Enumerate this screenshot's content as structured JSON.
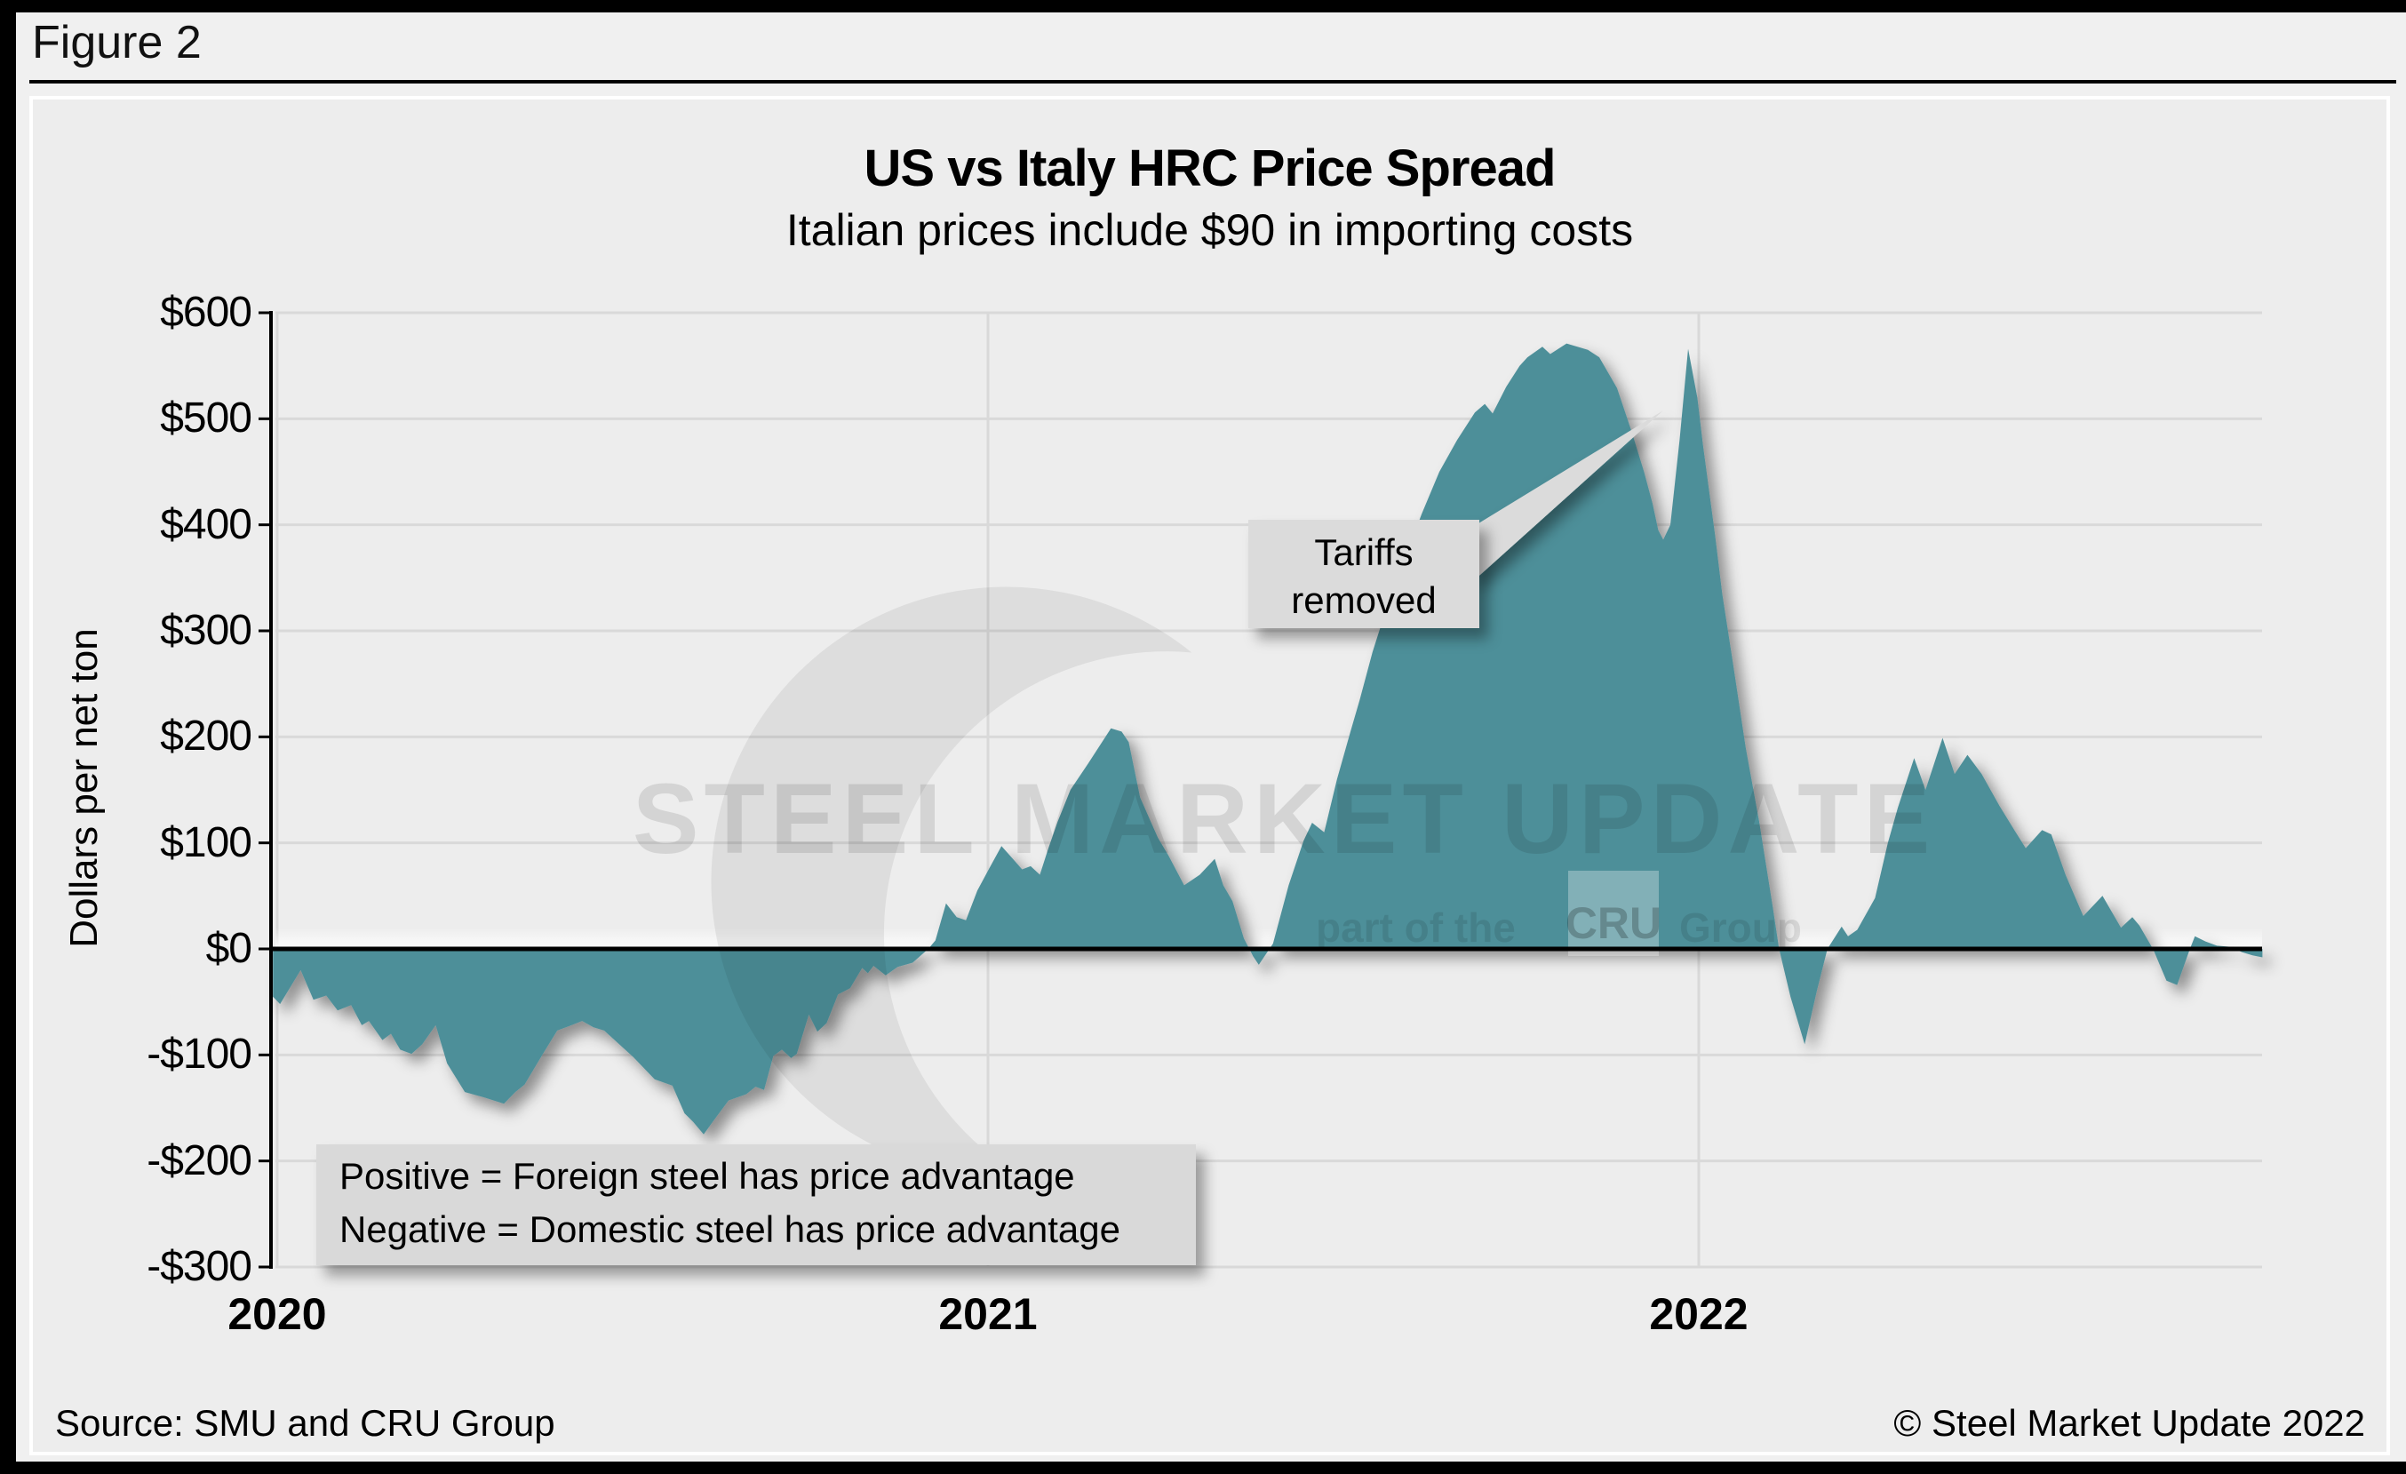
{
  "figure_label": "Figure 2",
  "callout": {
    "line1": "Tariffs",
    "line2": "removed"
  },
  "note_box": {
    "line1": "Positive = Foreign steel has price advantage",
    "line2": "Negative = Domestic steel has price advantage"
  },
  "watermark": {
    "main": "STEEL MARKET UPDATE",
    "sub_prefix": "part of the",
    "sub_box": "CRU",
    "sub_suffix": "Group"
  },
  "footer": {
    "source": "Source: SMU and CRU Group",
    "copyright": "© Steel Market Update 2022"
  },
  "colors": {
    "area": "#4E8F99",
    "card_bg": "#EDEDED",
    "page_bg": "#F0F0F0",
    "gridline": "#D9D9D9",
    "zero_line": "#000000",
    "note_bg": "#D9D9D9",
    "callout_bg": "#DBDBDB"
  },
  "chart_data": {
    "type": "area",
    "title": "US vs Italy HRC Price Spread",
    "subtitle": "Italian prices include $90 in importing costs",
    "ylabel": "Dollars per net ton",
    "ylim": [
      -300,
      600
    ],
    "ytick_step": 100,
    "ytick_labels": [
      "$600",
      "$500",
      "$400",
      "$300",
      "$200",
      "$100",
      "$0",
      "-$100",
      "-$200",
      "-$300"
    ],
    "ytick_values": [
      600,
      500,
      400,
      300,
      200,
      100,
      0,
      -100,
      -200,
      -300
    ],
    "xtick_labels": [
      "2020",
      "2021",
      "2022"
    ],
    "xtick_values": [
      2020,
      2021,
      2022
    ],
    "xlim": [
      2019.994,
      2022.793
    ],
    "grid": true,
    "legend": "none",
    "annotations": [
      {
        "text": "Tariffs removed",
        "target_x": 2021.95,
        "target_y": 386
      }
    ],
    "series": [
      {
        "name": "US minus Italy HRC price spread ($ per net ton)",
        "x": [
          2019.994,
          2020.004,
          2020.033,
          2020.051,
          2020.069,
          2020.085,
          2020.104,
          2020.119,
          2020.129,
          2020.148,
          2020.16,
          2020.173,
          2020.189,
          2020.204,
          2020.223,
          2020.239,
          2020.264,
          2020.291,
          2020.319,
          2020.335,
          2020.348,
          2020.373,
          2020.394,
          2020.41,
          2020.429,
          2020.445,
          2020.46,
          2020.501,
          2020.531,
          2020.556,
          2020.573,
          2020.585,
          2020.6,
          2020.614,
          2020.635,
          2020.66,
          2020.673,
          2020.685,
          2020.698,
          2020.71,
          2020.723,
          2020.731,
          2020.748,
          2020.76,
          2020.773,
          2020.789,
          2020.806,
          2020.823,
          2020.831,
          2020.839,
          2020.856,
          2020.873,
          2020.894,
          2020.916,
          2020.926,
          2020.941,
          2020.956,
          2020.969,
          2020.985,
          2021.001,
          2021.019,
          2021.035,
          2021.048,
          2021.06,
          2021.073,
          2021.085,
          2021.098,
          2021.116,
          2021.141,
          2021.173,
          2021.188,
          2021.198,
          2021.214,
          2021.229,
          2021.239,
          2021.254,
          2021.276,
          2021.298,
          2021.319,
          2021.331,
          2021.344,
          2021.36,
          2021.373,
          2021.381,
          2021.401,
          2021.423,
          2021.444,
          2021.456,
          2021.473,
          2021.491,
          2021.51,
          2021.523,
          2021.541,
          2021.56,
          2021.585,
          2021.61,
          2021.635,
          2021.66,
          2021.685,
          2021.699,
          2021.71,
          2021.729,
          2021.748,
          2021.759,
          2021.78,
          2021.791,
          2021.814,
          2021.844,
          2021.86,
          2021.885,
          2021.906,
          2021.923,
          2021.935,
          2021.943,
          2021.95,
          2021.96,
          2021.973,
          2021.985,
          2021.998,
          2022.006,
          2022.023,
          2022.033,
          2022.048,
          2022.066,
          2022.085,
          2022.104,
          2022.113,
          2022.129,
          2022.149,
          2022.166,
          2022.181,
          2022.201,
          2022.21,
          2022.223,
          2022.248,
          2022.266,
          2022.28,
          2022.303,
          2022.319,
          2022.343,
          2022.36,
          2022.378,
          2022.398,
          2022.423,
          2022.444,
          2022.46,
          2022.483,
          2022.496,
          2022.516,
          2022.541,
          2022.568,
          2022.594,
          2022.61,
          2022.62,
          2022.639,
          2022.658,
          2022.673,
          2022.691,
          2022.698,
          2022.713,
          2022.729,
          2022.748,
          2022.764,
          2022.779,
          2022.793
        ],
        "y": [
          -45,
          -52,
          -20,
          -48,
          -44,
          -58,
          -53,
          -72,
          -68,
          -86,
          -80,
          -95,
          -99,
          -90,
          -72,
          -108,
          -135,
          -140,
          -146,
          -135,
          -128,
          -100,
          -77,
          -73,
          -68,
          -74,
          -77,
          -102,
          -123,
          -129,
          -155,
          -163,
          -175,
          -162,
          -143,
          -137,
          -130,
          -133,
          -101,
          -95,
          -103,
          -99,
          -62,
          -78,
          -70,
          -43,
          -37,
          -18,
          -23,
          -16,
          -25,
          -17,
          -13,
          0,
          8,
          43,
          30,
          27,
          55,
          75,
          97,
          85,
          75,
          78,
          70,
          95,
          120,
          150,
          175,
          208,
          205,
          195,
          143,
          120,
          105,
          88,
          60,
          70,
          85,
          60,
          45,
          10,
          -7,
          -15,
          5,
          60,
          102,
          119,
          110,
          160,
          205,
          235,
          280,
          320,
          365,
          410,
          450,
          480,
          506,
          514,
          505,
          530,
          550,
          558,
          568,
          561,
          571,
          565,
          558,
          529,
          487,
          450,
          420,
          395,
          386,
          400,
          480,
          566,
          520,
          475,
          390,
          335,
          270,
          190,
          120,
          40,
          0,
          -45,
          -90,
          -40,
          0,
          21,
          12,
          18,
          48,
          100,
          133,
          180,
          150,
          199,
          165,
          183,
          165,
          135,
          112,
          95,
          112,
          108,
          70,
          31,
          50,
          20,
          30,
          22,
          0,
          -30,
          -34,
          0,
          12,
          7,
          3,
          2,
          -3,
          -6,
          -8
        ]
      }
    ]
  }
}
